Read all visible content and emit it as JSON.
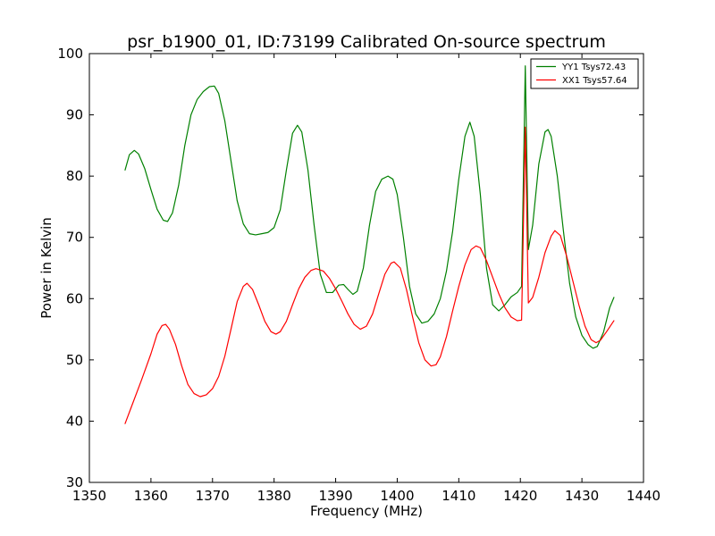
{
  "chart_data": {
    "type": "line",
    "title": "psr_b1900_01, ID:73199 Calibrated On-source spectrum",
    "xlabel": "Frequency (MHz)",
    "ylabel": "Power in Kelvin",
    "xlim": [
      1350,
      1440
    ],
    "ylim": [
      30,
      100
    ],
    "xticks": [
      1350,
      1360,
      1370,
      1380,
      1390,
      1400,
      1410,
      1420,
      1430,
      1440
    ],
    "yticks": [
      30,
      40,
      50,
      60,
      70,
      80,
      90,
      100
    ],
    "xtick_labels": [
      "1350",
      "1360",
      "1370",
      "1380",
      "1390",
      "1400",
      "1410",
      "1420",
      "1430",
      "1440"
    ],
    "ytick_labels": [
      "30",
      "40",
      "50",
      "60",
      "70",
      "80",
      "90",
      "100"
    ],
    "grid": false,
    "legend_position": "top-right",
    "series": [
      {
        "name": "YY1 Tsys72.43",
        "color": "#008000",
        "points": [
          [
            1355.8,
            81.0
          ],
          [
            1356.5,
            83.5
          ],
          [
            1357.3,
            84.2
          ],
          [
            1358.0,
            83.6
          ],
          [
            1359.0,
            81.2
          ],
          [
            1360.0,
            77.8
          ],
          [
            1361.0,
            74.6
          ],
          [
            1362.0,
            72.8
          ],
          [
            1362.7,
            72.6
          ],
          [
            1363.5,
            74.0
          ],
          [
            1364.5,
            78.5
          ],
          [
            1365.5,
            85.0
          ],
          [
            1366.5,
            90.0
          ],
          [
            1367.5,
            92.5
          ],
          [
            1368.5,
            93.8
          ],
          [
            1369.5,
            94.6
          ],
          [
            1370.3,
            94.7
          ],
          [
            1371.0,
            93.5
          ],
          [
            1372.0,
            89.0
          ],
          [
            1373.0,
            82.5
          ],
          [
            1374.0,
            76.0
          ],
          [
            1375.0,
            72.2
          ],
          [
            1376.0,
            70.6
          ],
          [
            1377.0,
            70.4
          ],
          [
            1378.0,
            70.6
          ],
          [
            1379.0,
            70.8
          ],
          [
            1380.0,
            71.6
          ],
          [
            1381.0,
            74.5
          ],
          [
            1382.0,
            81.0
          ],
          [
            1383.0,
            87.0
          ],
          [
            1383.8,
            88.3
          ],
          [
            1384.5,
            87.2
          ],
          [
            1385.5,
            81.0
          ],
          [
            1386.5,
            72.0
          ],
          [
            1387.5,
            64.0
          ],
          [
            1388.5,
            61.0
          ],
          [
            1389.5,
            61.0
          ],
          [
            1390.5,
            62.2
          ],
          [
            1391.3,
            62.3
          ],
          [
            1392.0,
            61.5
          ],
          [
            1392.8,
            60.7
          ],
          [
            1393.5,
            61.2
          ],
          [
            1394.5,
            65.0
          ],
          [
            1395.5,
            72.0
          ],
          [
            1396.5,
            77.5
          ],
          [
            1397.5,
            79.5
          ],
          [
            1398.5,
            80.0
          ],
          [
            1399.3,
            79.5
          ],
          [
            1400.0,
            77.0
          ],
          [
            1401.0,
            70.0
          ],
          [
            1402.0,
            62.0
          ],
          [
            1403.0,
            57.5
          ],
          [
            1404.0,
            56.0
          ],
          [
            1405.0,
            56.3
          ],
          [
            1406.0,
            57.5
          ],
          [
            1407.0,
            60.0
          ],
          [
            1408.0,
            64.5
          ],
          [
            1409.0,
            71.0
          ],
          [
            1410.0,
            79.5
          ],
          [
            1411.0,
            86.5
          ],
          [
            1411.8,
            88.8
          ],
          [
            1412.5,
            86.5
          ],
          [
            1413.5,
            77.0
          ],
          [
            1414.5,
            65.0
          ],
          [
            1415.5,
            59.0
          ],
          [
            1416.5,
            58.0
          ],
          [
            1417.5,
            59.0
          ],
          [
            1418.5,
            60.3
          ],
          [
            1419.5,
            61.0
          ],
          [
            1420.2,
            62.0
          ],
          [
            1420.8,
            98.0
          ],
          [
            1421.3,
            68.0
          ],
          [
            1422.0,
            72.0
          ],
          [
            1423.0,
            82.0
          ],
          [
            1424.0,
            87.2
          ],
          [
            1424.5,
            87.6
          ],
          [
            1425.0,
            86.5
          ],
          [
            1426.0,
            80.0
          ],
          [
            1427.0,
            71.0
          ],
          [
            1428.0,
            62.5
          ],
          [
            1429.0,
            57.0
          ],
          [
            1430.0,
            54.0
          ],
          [
            1431.0,
            52.5
          ],
          [
            1431.8,
            51.9
          ],
          [
            1432.5,
            52.2
          ],
          [
            1433.5,
            54.5
          ],
          [
            1434.5,
            58.5
          ],
          [
            1435.2,
            60.2
          ]
        ]
      },
      {
        "name": "XX1 Tsys57.64",
        "color": "#ff0000",
        "points": [
          [
            1355.8,
            39.6
          ],
          [
            1357.0,
            42.8
          ],
          [
            1358.5,
            46.8
          ],
          [
            1360.0,
            51.0
          ],
          [
            1361.0,
            54.2
          ],
          [
            1361.8,
            55.6
          ],
          [
            1362.4,
            55.8
          ],
          [
            1363.0,
            55.0
          ],
          [
            1364.0,
            52.5
          ],
          [
            1365.0,
            49.0
          ],
          [
            1366.0,
            46.0
          ],
          [
            1367.0,
            44.5
          ],
          [
            1368.0,
            44.0
          ],
          [
            1369.0,
            44.3
          ],
          [
            1370.0,
            45.3
          ],
          [
            1371.0,
            47.3
          ],
          [
            1372.0,
            50.6
          ],
          [
            1373.0,
            55.0
          ],
          [
            1374.0,
            59.5
          ],
          [
            1375.0,
            62.0
          ],
          [
            1375.6,
            62.5
          ],
          [
            1376.5,
            61.5
          ],
          [
            1377.5,
            59.0
          ],
          [
            1378.5,
            56.3
          ],
          [
            1379.5,
            54.6
          ],
          [
            1380.3,
            54.2
          ],
          [
            1381.0,
            54.6
          ],
          [
            1382.0,
            56.3
          ],
          [
            1383.0,
            59.0
          ],
          [
            1384.0,
            61.6
          ],
          [
            1385.0,
            63.5
          ],
          [
            1386.0,
            64.6
          ],
          [
            1386.8,
            64.9
          ],
          [
            1388.0,
            64.5
          ],
          [
            1389.0,
            63.3
          ],
          [
            1390.0,
            61.6
          ],
          [
            1391.0,
            59.6
          ],
          [
            1392.0,
            57.5
          ],
          [
            1393.0,
            55.8
          ],
          [
            1394.0,
            55.0
          ],
          [
            1395.0,
            55.5
          ],
          [
            1396.0,
            57.5
          ],
          [
            1397.0,
            60.8
          ],
          [
            1398.0,
            64.0
          ],
          [
            1399.0,
            65.8
          ],
          [
            1399.5,
            66.0
          ],
          [
            1400.5,
            65.0
          ],
          [
            1401.5,
            61.5
          ],
          [
            1402.5,
            57.0
          ],
          [
            1403.5,
            52.8
          ],
          [
            1404.5,
            50.0
          ],
          [
            1405.5,
            49.0
          ],
          [
            1406.3,
            49.2
          ],
          [
            1407.0,
            50.5
          ],
          [
            1408.0,
            53.8
          ],
          [
            1409.0,
            58.0
          ],
          [
            1410.0,
            62.0
          ],
          [
            1411.0,
            65.5
          ],
          [
            1412.0,
            68.0
          ],
          [
            1412.8,
            68.6
          ],
          [
            1413.5,
            68.3
          ],
          [
            1414.5,
            66.2
          ],
          [
            1415.5,
            63.5
          ],
          [
            1416.5,
            60.8
          ],
          [
            1417.5,
            58.5
          ],
          [
            1418.5,
            57.0
          ],
          [
            1419.5,
            56.4
          ],
          [
            1420.2,
            56.5
          ],
          [
            1420.8,
            88.0
          ],
          [
            1421.3,
            59.3
          ],
          [
            1422.0,
            60.2
          ],
          [
            1423.0,
            63.5
          ],
          [
            1424.0,
            67.5
          ],
          [
            1425.0,
            70.2
          ],
          [
            1425.6,
            71.1
          ],
          [
            1426.5,
            70.3
          ],
          [
            1427.5,
            67.0
          ],
          [
            1428.5,
            63.0
          ],
          [
            1429.5,
            59.0
          ],
          [
            1430.5,
            55.5
          ],
          [
            1431.5,
            53.3
          ],
          [
            1432.3,
            52.8
          ],
          [
            1433.0,
            53.2
          ],
          [
            1434.0,
            54.6
          ],
          [
            1435.2,
            56.4
          ]
        ]
      }
    ]
  }
}
